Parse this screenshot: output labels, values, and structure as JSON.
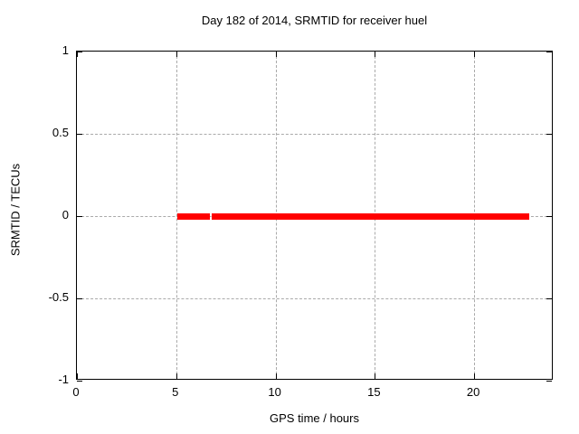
{
  "chart_data": {
    "type": "line",
    "title": "Day 182 of 2014, SRMTID for receiver huel",
    "xlabel": "GPS time / hours",
    "ylabel": "SRMTID / TECUs",
    "xlim": [
      0,
      24
    ],
    "ylim": [
      -1,
      1
    ],
    "xticks": [
      {
        "v": 0,
        "label": "0"
      },
      {
        "v": 5,
        "label": "5"
      },
      {
        "v": 10,
        "label": "10"
      },
      {
        "v": 15,
        "label": "15"
      },
      {
        "v": 20,
        "label": "20"
      }
    ],
    "yticks": [
      {
        "v": 1,
        "label": "1"
      },
      {
        "v": 0.5,
        "label": "0.5"
      },
      {
        "v": 0,
        "label": "0"
      },
      {
        "v": -0.5,
        "label": "-0.5"
      },
      {
        "v": -1,
        "label": "-1"
      }
    ],
    "grid": true,
    "legend": false,
    "series": [
      {
        "name": "SRMTID",
        "color": "#ff0000",
        "segments": [
          {
            "x_start": 5.05,
            "x_end": 6.7,
            "y": 0
          },
          {
            "x_start": 6.8,
            "x_end": 22.8,
            "y": 0
          }
        ]
      }
    ],
    "colors": {
      "background": "#ffffff",
      "border": "#000000",
      "grid": "#aaaaaa",
      "series": "#ff0000",
      "text": "#000000"
    }
  }
}
